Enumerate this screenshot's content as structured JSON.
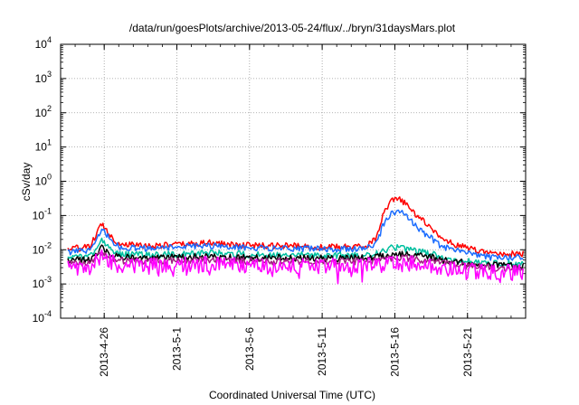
{
  "chart_data": {
    "type": "line",
    "title": "/data/run/goesPlots/archive/2013-05-24/flux/../bryn/31daysMars.plot",
    "xlabel": "Coordinated Universal Time (UTC)",
    "ylabel": "cSv/day",
    "xlim": [
      "2013-04-23",
      "2013-05-25"
    ],
    "ylim": [
      0.0001,
      10000
    ],
    "yscale": "log",
    "grid": true,
    "x_ticks": [
      {
        "date": "2013-04-26",
        "label": "2013-4-26"
      },
      {
        "date": "2013-05-01",
        "label": "2013-5-1"
      },
      {
        "date": "2013-05-06",
        "label": "2013-5-6"
      },
      {
        "date": "2013-05-11",
        "label": "2013-5-11"
      },
      {
        "date": "2013-05-16",
        "label": "2013-5-16"
      },
      {
        "date": "2013-05-21",
        "label": "2013-5-21"
      }
    ],
    "y_ticks": [
      {
        "exp": "-4"
      },
      {
        "exp": "-3"
      },
      {
        "exp": "-2"
      },
      {
        "exp": "-1"
      },
      {
        "exp": "0"
      },
      {
        "exp": "1"
      },
      {
        "exp": "2"
      },
      {
        "exp": "3"
      },
      {
        "exp": "4"
      }
    ],
    "series": [
      {
        "color": "#ff0000",
        "noise": 0.09,
        "points": [
          [
            "2013-04-23T12",
            0.0105
          ],
          [
            "2013-04-24",
            0.011
          ],
          [
            "2013-04-25",
            0.012
          ],
          [
            "2013-04-25T12",
            0.03
          ],
          [
            "2013-04-25T20",
            0.06
          ],
          [
            "2013-04-26T06",
            0.032
          ],
          [
            "2013-04-27",
            0.015
          ],
          [
            "2013-04-29",
            0.013
          ],
          [
            "2013-05-01",
            0.014
          ],
          [
            "2013-05-03",
            0.016
          ],
          [
            "2013-05-05",
            0.014
          ],
          [
            "2013-05-07",
            0.013
          ],
          [
            "2013-05-09",
            0.013
          ],
          [
            "2013-05-11",
            0.012
          ],
          [
            "2013-05-13",
            0.012
          ],
          [
            "2013-05-14",
            0.013
          ],
          [
            "2013-05-14T18",
            0.022
          ],
          [
            "2013-05-15T06",
            0.12
          ],
          [
            "2013-05-15T18",
            0.26
          ],
          [
            "2013-05-16T06",
            0.3
          ],
          [
            "2013-05-16T18",
            0.22
          ],
          [
            "2013-05-17T12",
            0.1
          ],
          [
            "2013-05-18T12",
            0.045
          ],
          [
            "2013-05-19T06",
            0.02
          ],
          [
            "2013-05-20",
            0.015
          ],
          [
            "2013-05-21T18",
            0.009
          ],
          [
            "2013-05-23",
            0.0075
          ],
          [
            "2013-05-24T20",
            0.0075
          ]
        ]
      },
      {
        "color": "#1a6cff",
        "noise": 0.09,
        "points": [
          [
            "2013-04-23T12",
            0.0085
          ],
          [
            "2013-04-24",
            0.009
          ],
          [
            "2013-04-25",
            0.0095
          ],
          [
            "2013-04-25T12",
            0.022
          ],
          [
            "2013-04-25T20",
            0.042
          ],
          [
            "2013-04-26T06",
            0.024
          ],
          [
            "2013-04-27",
            0.012
          ],
          [
            "2013-04-29",
            0.011
          ],
          [
            "2013-05-01",
            0.012
          ],
          [
            "2013-05-03",
            0.013
          ],
          [
            "2013-05-05",
            0.012
          ],
          [
            "2013-05-07",
            0.011
          ],
          [
            "2013-05-09",
            0.011
          ],
          [
            "2013-05-11",
            0.0105
          ],
          [
            "2013-05-13",
            0.0105
          ],
          [
            "2013-05-14",
            0.011
          ],
          [
            "2013-05-14T18",
            0.016
          ],
          [
            "2013-05-15T06",
            0.06
          ],
          [
            "2013-05-15T18",
            0.11
          ],
          [
            "2013-05-16T06",
            0.14
          ],
          [
            "2013-05-16T18",
            0.1
          ],
          [
            "2013-05-17T12",
            0.045
          ],
          [
            "2013-05-18T12",
            0.022
          ],
          [
            "2013-05-19T06",
            0.012
          ],
          [
            "2013-05-20",
            0.01
          ],
          [
            "2013-05-21T18",
            0.0065
          ],
          [
            "2013-05-23",
            0.0058
          ],
          [
            "2013-05-24T20",
            0.0058
          ]
        ]
      },
      {
        "color": "#00c0a0",
        "noise": 0.1,
        "points": [
          [
            "2013-04-23T12",
            0.0055
          ],
          [
            "2013-04-24",
            0.006
          ],
          [
            "2013-04-25",
            0.0062
          ],
          [
            "2013-04-25T12",
            0.012
          ],
          [
            "2013-04-25T20",
            0.02
          ],
          [
            "2013-04-26T06",
            0.012
          ],
          [
            "2013-04-27",
            0.0075
          ],
          [
            "2013-04-29",
            0.007
          ],
          [
            "2013-05-01",
            0.0075
          ],
          [
            "2013-05-03",
            0.008
          ],
          [
            "2013-05-05",
            0.0075
          ],
          [
            "2013-05-07",
            0.007
          ],
          [
            "2013-05-09",
            0.007
          ],
          [
            "2013-05-11",
            0.0068
          ],
          [
            "2013-05-13",
            0.0068
          ],
          [
            "2013-05-14",
            0.007
          ],
          [
            "2013-05-15",
            0.0085
          ],
          [
            "2013-05-15T18",
            0.011
          ],
          [
            "2013-05-16T06",
            0.012
          ],
          [
            "2013-05-16T18",
            0.01
          ],
          [
            "2013-05-17T12",
            0.009
          ],
          [
            "2013-05-18T12",
            0.0075
          ],
          [
            "2013-05-19T06",
            0.006
          ],
          [
            "2013-05-20",
            0.0055
          ],
          [
            "2013-05-21T18",
            0.0045
          ],
          [
            "2013-05-23",
            0.004
          ],
          [
            "2013-05-24T20",
            0.004
          ]
        ]
      },
      {
        "color": "#000000",
        "noise": 0.1,
        "points": [
          [
            "2013-04-23T12",
            0.0048
          ],
          [
            "2013-04-24",
            0.005
          ],
          [
            "2013-04-25",
            0.0052
          ],
          [
            "2013-04-25T20",
            0.011
          ],
          [
            "2013-04-26T06",
            0.008
          ],
          [
            "2013-04-27",
            0.006
          ],
          [
            "2013-04-29",
            0.0058
          ],
          [
            "2013-05-01",
            0.006
          ],
          [
            "2013-05-03",
            0.0065
          ],
          [
            "2013-05-05",
            0.006
          ],
          [
            "2013-05-07",
            0.0058
          ],
          [
            "2013-05-09",
            0.0058
          ],
          [
            "2013-05-11",
            0.0056
          ],
          [
            "2013-05-13",
            0.0056
          ],
          [
            "2013-05-14",
            0.0058
          ],
          [
            "2013-05-15",
            0.0065
          ],
          [
            "2013-05-16T06",
            0.0075
          ],
          [
            "2013-05-17T12",
            0.0068
          ],
          [
            "2013-05-18T12",
            0.006
          ],
          [
            "2013-05-19T06",
            0.005
          ],
          [
            "2013-05-20",
            0.0045
          ],
          [
            "2013-05-21T18",
            0.0038
          ],
          [
            "2013-05-23",
            0.0034
          ],
          [
            "2013-05-24T20",
            0.0034
          ]
        ]
      },
      {
        "color": "#a02080",
        "noise": 0.1,
        "points": [
          [
            "2013-04-23T12",
            0.0038
          ],
          [
            "2013-04-24",
            0.004
          ],
          [
            "2013-04-25",
            0.0042
          ],
          [
            "2013-04-25T20",
            0.008
          ],
          [
            "2013-04-26T06",
            0.006
          ],
          [
            "2013-04-27",
            0.0048
          ],
          [
            "2013-04-29",
            0.0046
          ],
          [
            "2013-05-01",
            0.0048
          ],
          [
            "2013-05-03",
            0.005
          ],
          [
            "2013-05-05",
            0.0048
          ],
          [
            "2013-05-07",
            0.0046
          ],
          [
            "2013-05-09",
            0.0046
          ],
          [
            "2013-05-11",
            0.0045
          ],
          [
            "2013-05-13",
            0.0045
          ],
          [
            "2013-05-14",
            0.0046
          ],
          [
            "2013-05-15",
            0.005
          ],
          [
            "2013-05-16T06",
            0.0058
          ],
          [
            "2013-05-17T12",
            0.0053
          ],
          [
            "2013-05-18T12",
            0.0048
          ],
          [
            "2013-05-19T06",
            0.0042
          ],
          [
            "2013-05-20",
            0.0038
          ],
          [
            "2013-05-21T18",
            0.0032
          ],
          [
            "2013-05-23",
            0.0029
          ],
          [
            "2013-05-24T20",
            0.0029
          ]
        ]
      },
      {
        "color": "#ff00ff",
        "noise": 0.24,
        "points": [
          [
            "2013-04-23T12",
            0.0028
          ],
          [
            "2013-04-24",
            0.003
          ],
          [
            "2013-04-25",
            0.0032
          ],
          [
            "2013-04-25T20",
            0.006
          ],
          [
            "2013-04-26T06",
            0.0045
          ],
          [
            "2013-04-27",
            0.0036
          ],
          [
            "2013-04-29",
            0.0034
          ],
          [
            "2013-05-01",
            0.0035
          ],
          [
            "2013-05-03",
            0.0037
          ],
          [
            "2013-05-05",
            0.0035
          ],
          [
            "2013-05-07",
            0.0034
          ],
          [
            "2013-05-09",
            0.0034
          ],
          [
            "2013-05-11",
            0.0033
          ],
          [
            "2013-05-13",
            0.0033
          ],
          [
            "2013-05-14",
            0.0034
          ],
          [
            "2013-05-15",
            0.0036
          ],
          [
            "2013-05-16T06",
            0.004
          ],
          [
            "2013-05-17T12",
            0.0037
          ],
          [
            "2013-05-18T12",
            0.0034
          ],
          [
            "2013-05-19T06",
            0.003
          ],
          [
            "2013-05-20",
            0.0028
          ],
          [
            "2013-05-21T18",
            0.0024
          ],
          [
            "2013-05-23",
            0.0022
          ],
          [
            "2013-05-24T20",
            0.0022
          ]
        ]
      }
    ]
  }
}
